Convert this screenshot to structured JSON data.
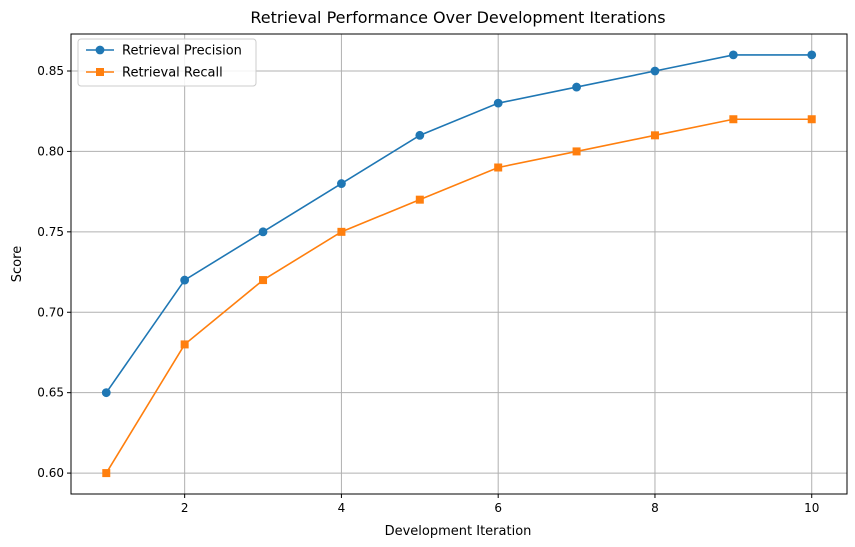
{
  "chart_data": {
    "type": "line",
    "title": "Retrieval Performance Over Development Iterations",
    "xlabel": "Development Iteration",
    "ylabel": "Score",
    "x": [
      1,
      2,
      3,
      4,
      5,
      6,
      7,
      8,
      9,
      10
    ],
    "xlim": [
      0.55,
      10.45
    ],
    "ylim": [
      0.587,
      0.873
    ],
    "xticks": [
      2,
      4,
      6,
      8,
      10
    ],
    "yticks": [
      0.6,
      0.65,
      0.7,
      0.75,
      0.8,
      0.85
    ],
    "grid": true,
    "legend_position": "upper-left",
    "series": [
      {
        "name": "Retrieval Precision",
        "marker": "circle",
        "color": "#1f77b4",
        "values": [
          0.65,
          0.72,
          0.75,
          0.78,
          0.81,
          0.83,
          0.84,
          0.85,
          0.86,
          0.86
        ]
      },
      {
        "name": "Retrieval Recall",
        "marker": "square",
        "color": "#ff7f0e",
        "values": [
          0.6,
          0.68,
          0.72,
          0.75,
          0.77,
          0.79,
          0.8,
          0.81,
          0.82,
          0.82
        ]
      }
    ]
  }
}
